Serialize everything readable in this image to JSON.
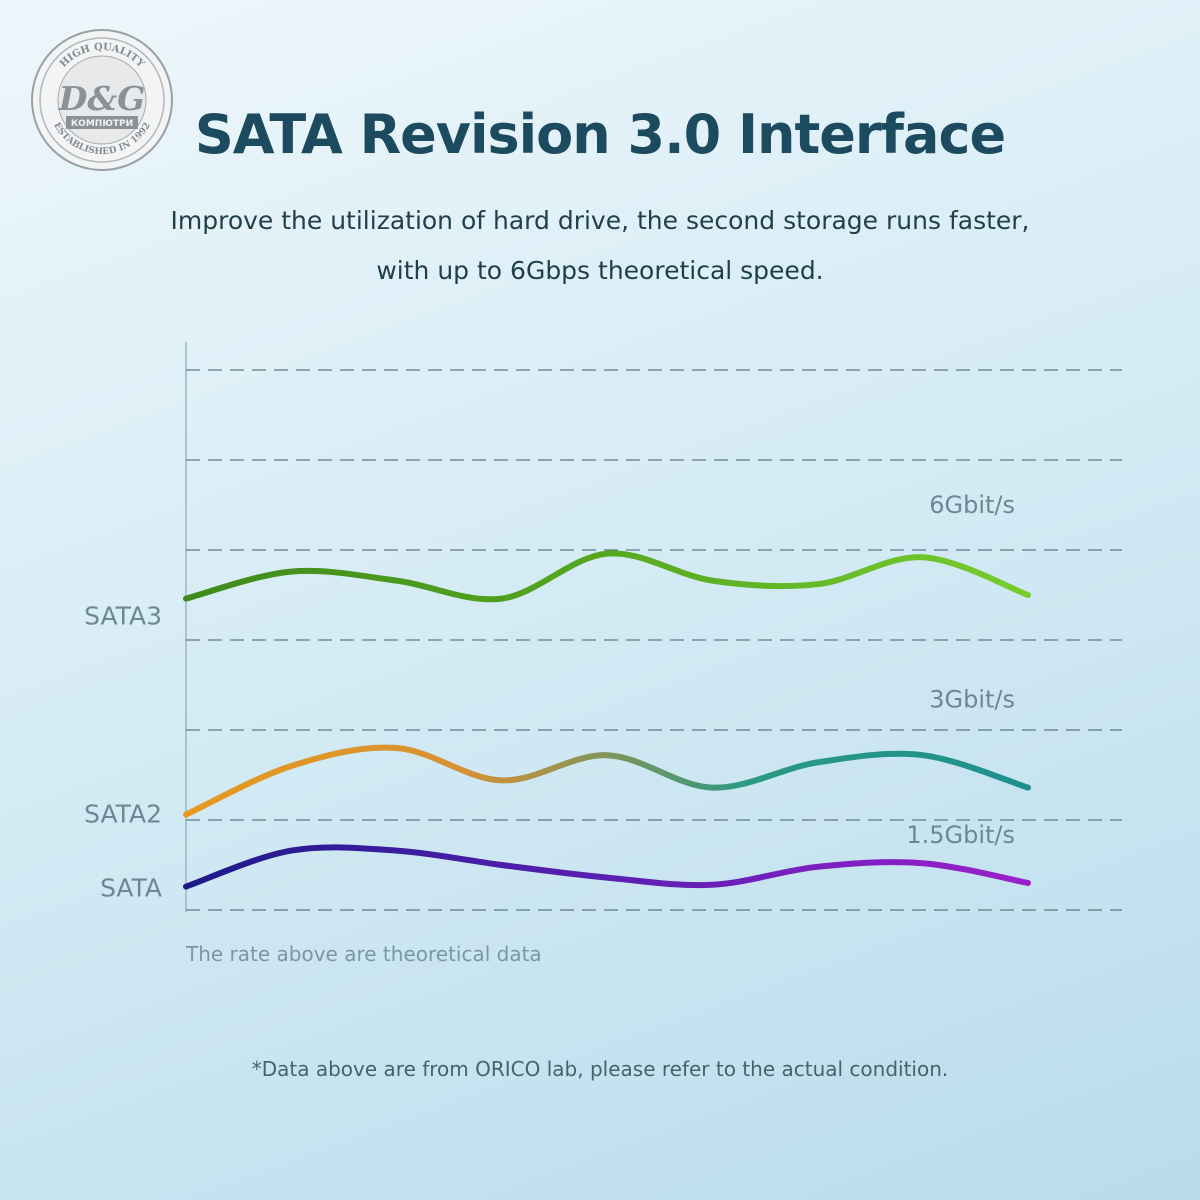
{
  "logo": {
    "main": "D&G",
    "top_text": "HIGH QUALITY",
    "mid_text": "КОМПЮТРИ",
    "bottom_text": "ESTABLISHED IN 1992"
  },
  "title": "SATA Revision 3.0 Interface",
  "subtitle_line1": "Improve the utilization of hard drive, the second storage runs faster,",
  "subtitle_line2": "with up to 6Gbps theoretical speed.",
  "chart_data": {
    "type": "line",
    "title": "",
    "xlabel": "",
    "ylabel": "",
    "ylim": [
      0,
      6
    ],
    "gridlines": [
      0,
      1,
      2,
      3,
      4,
      5,
      6
    ],
    "grid": true,
    "x": [
      0,
      1,
      2,
      3,
      4,
      5,
      6,
      7,
      8
    ],
    "series": [
      {
        "name": "SATA",
        "speed_label": "1.5Gbit/s",
        "values": [
          0.26,
          0.66,
          0.66,
          0.5,
          0.36,
          0.28,
          0.48,
          0.52,
          0.3
        ],
        "gradient": [
          "#1d1a8a",
          "#5a1fb3",
          "#9b20cc"
        ]
      },
      {
        "name": "SATA2",
        "speed_label": "3Gbit/s",
        "values": [
          1.06,
          1.6,
          1.8,
          1.44,
          1.72,
          1.36,
          1.64,
          1.72,
          1.36
        ],
        "gradient": [
          "#e79a1e",
          "#d69134",
          "#2a9a83",
          "#1e8f8f"
        ]
      },
      {
        "name": "SATA3",
        "speed_label": "6Gbit/s",
        "values": [
          3.46,
          3.76,
          3.66,
          3.46,
          3.96,
          3.66,
          3.62,
          3.92,
          3.5
        ],
        "gradient": [
          "#3f8a1a",
          "#56a820",
          "#77cc2d"
        ]
      }
    ]
  },
  "note": "The rate above are theoretical data",
  "footnote": "*Data above are from ORICO lab, please refer to the actual condition."
}
